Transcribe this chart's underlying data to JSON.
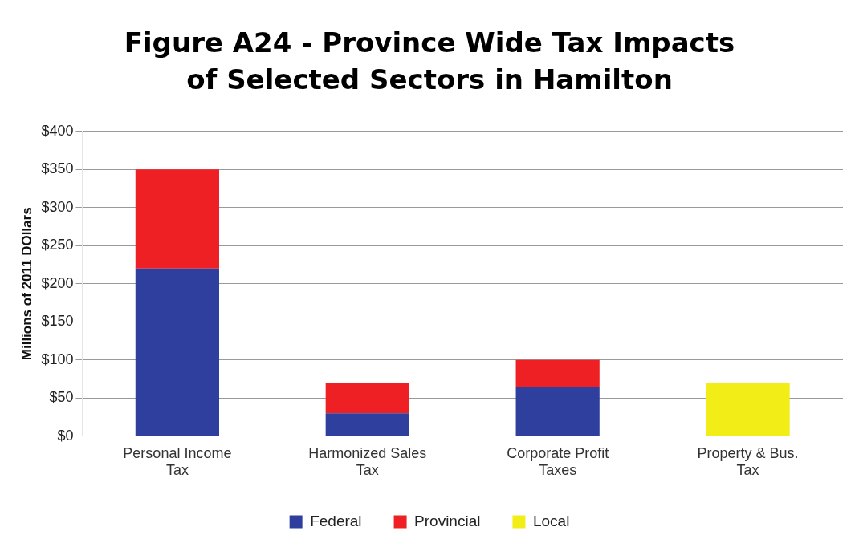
{
  "chart_data": {
    "type": "bar",
    "stacked": true,
    "title": "Figure A24 - Province Wide Tax Impacts of Selected Sectors in Hamilton",
    "ylabel": "Millions of 2011 DOllars",
    "categories": [
      "Personal Income Tax",
      "Harmonized Sales Tax",
      "Corporate Profit Taxes",
      "Property & Bus. Tax"
    ],
    "series": [
      {
        "name": "Federal",
        "color": "#2e3f9e",
        "values": [
          220,
          30,
          65,
          null
        ]
      },
      {
        "name": "Provincial",
        "color": "#ee2024",
        "values": [
          130,
          40,
          35,
          null
        ]
      },
      {
        "name": "Local",
        "color": "#f2ec17",
        "values": [
          null,
          null,
          null,
          70
        ]
      }
    ],
    "ylim": [
      0,
      400
    ],
    "yticks": [
      {
        "value": 0,
        "label": "$0"
      },
      {
        "value": 50,
        "label": "$50"
      },
      {
        "value": 100,
        "label": "$100"
      },
      {
        "value": 150,
        "label": "$150"
      },
      {
        "value": 200,
        "label": "$200"
      },
      {
        "value": 250,
        "label": "$250"
      },
      {
        "value": 300,
        "label": "$300"
      },
      {
        "value": 350,
        "label": "$350"
      },
      {
        "value": 400,
        "label": "$400"
      }
    ],
    "grid": "y",
    "legend": "bottom"
  }
}
